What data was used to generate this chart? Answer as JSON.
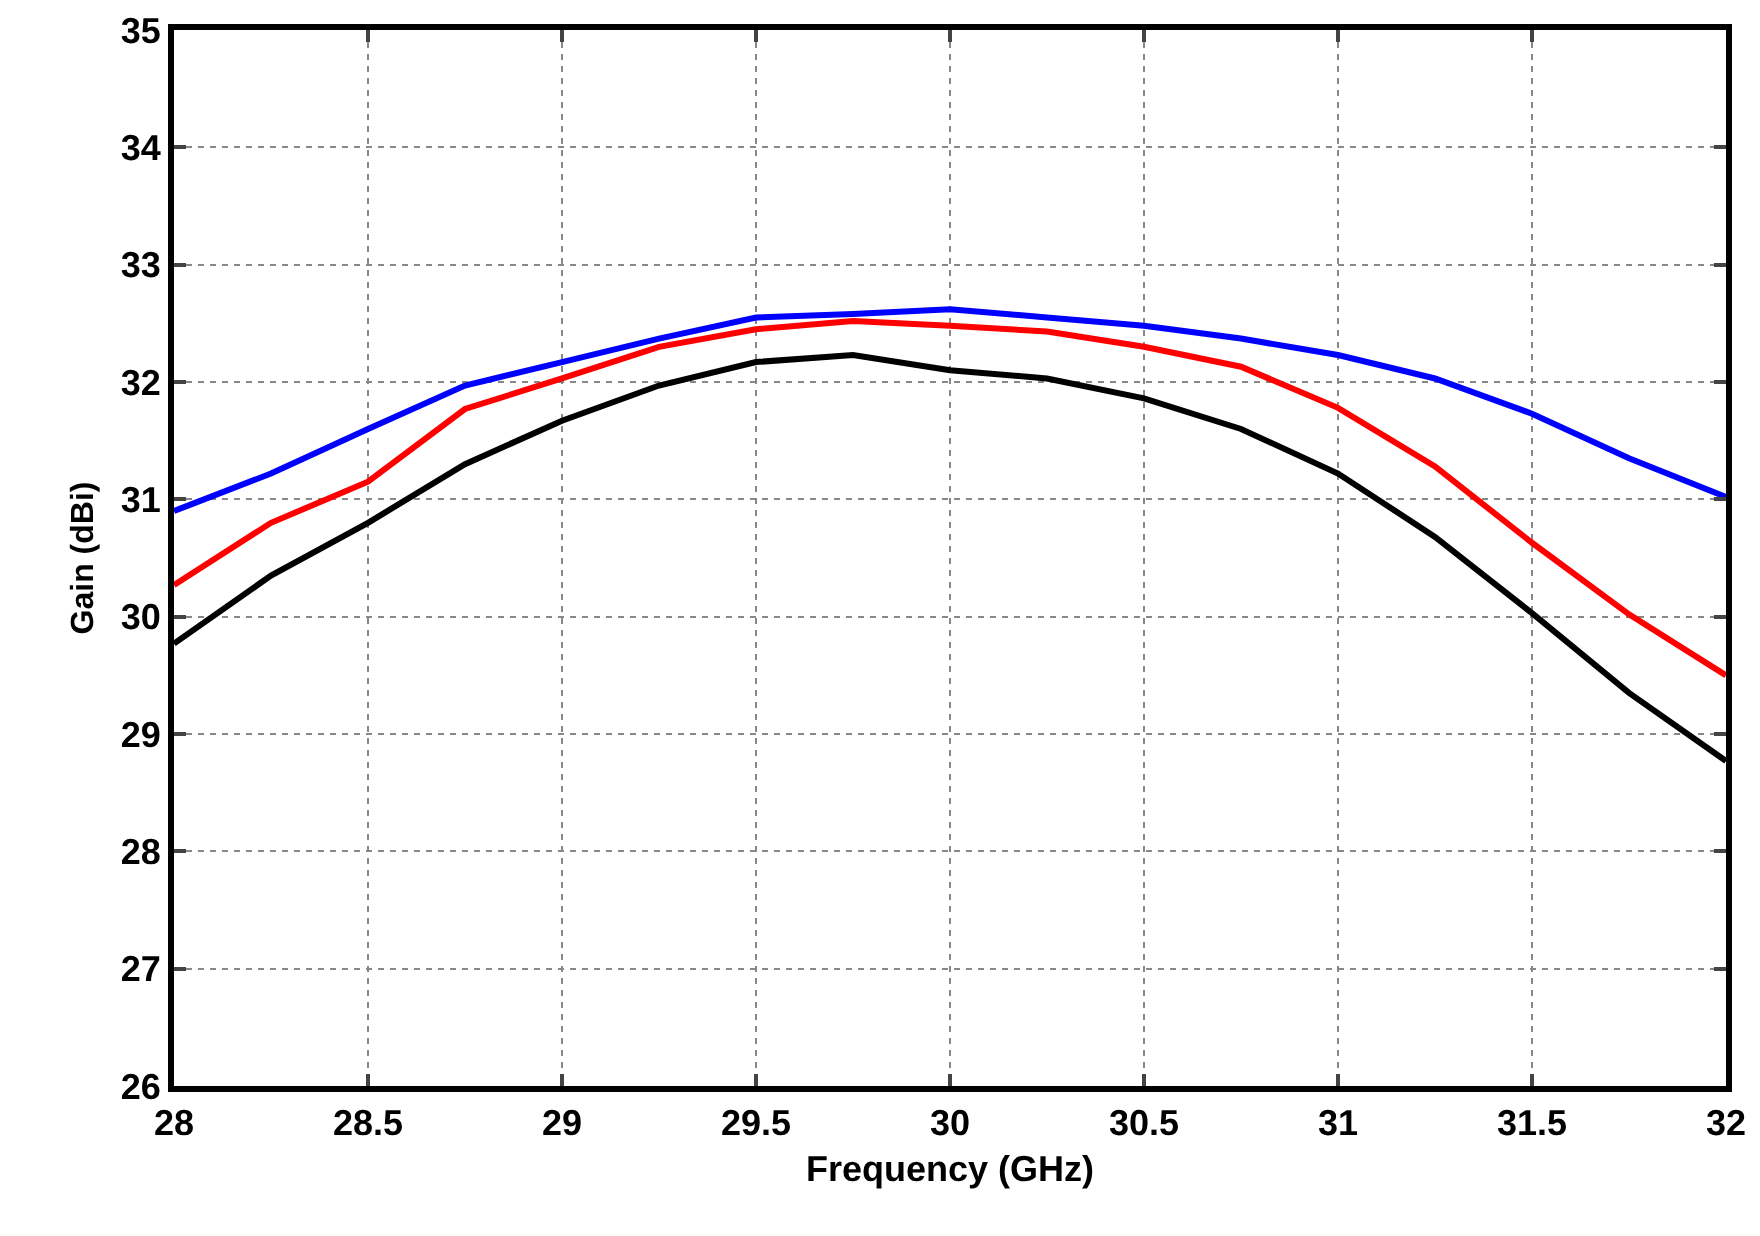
{
  "chart_data": {
    "type": "line",
    "xlabel": "Frequency (GHz)",
    "ylabel": "Gain (dBi)",
    "x": [
      28,
      28.25,
      28.5,
      28.75,
      29,
      29.25,
      29.5,
      29.75,
      30,
      30.25,
      30.5,
      30.75,
      31,
      31.25,
      31.5,
      31.75,
      32
    ],
    "series": [
      {
        "color": "#0000ff",
        "values": [
          30.9,
          31.22,
          31.6,
          31.97,
          32.17,
          32.37,
          32.55,
          32.58,
          32.62,
          32.55,
          32.48,
          32.37,
          32.23,
          32.03,
          31.73,
          31.35,
          31.02
        ]
      },
      {
        "color": "#ff0000",
        "values": [
          30.27,
          30.8,
          31.15,
          31.77,
          32.03,
          32.3,
          32.45,
          32.52,
          32.48,
          32.43,
          32.3,
          32.13,
          31.78,
          31.28,
          30.63,
          30.02,
          29.5
        ]
      },
      {
        "color": "#000000",
        "values": [
          29.77,
          30.35,
          30.8,
          31.3,
          31.67,
          31.97,
          32.17,
          32.23,
          32.1,
          32.03,
          31.86,
          31.6,
          31.22,
          30.68,
          30.03,
          29.35,
          28.77
        ]
      }
    ],
    "xlim": [
      28,
      32
    ],
    "xticks": [
      28,
      28.5,
      29,
      29.5,
      30,
      30.5,
      31,
      31.5,
      32
    ],
    "ylim": [
      26,
      35
    ],
    "yticks": [
      26,
      27,
      28,
      29,
      30,
      31,
      32,
      33,
      34,
      35
    ],
    "grid": true,
    "marker": "none",
    "line_style": "solid"
  }
}
